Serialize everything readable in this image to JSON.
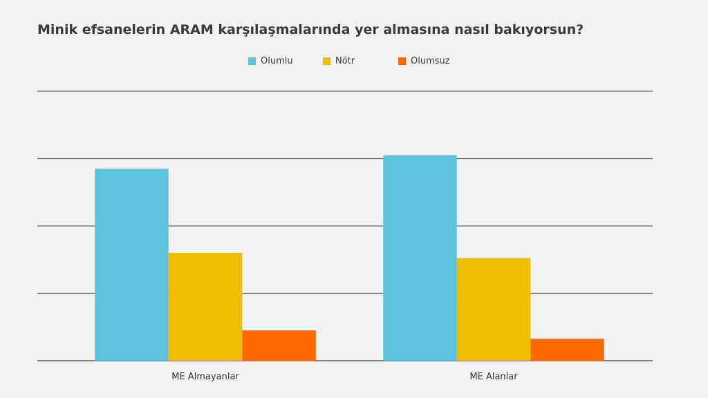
{
  "chart_data": {
    "type": "bar",
    "title": "Minik efsanelerin ARAM karşılaşmalarında yer almasına nasıl bakıyorsun?",
    "categories": [
      "ME Almayanlar",
      "ME Alanlar"
    ],
    "series": [
      {
        "name": "Olumlu",
        "color": "#5bc4dc",
        "values": [
          57,
          61
        ]
      },
      {
        "name": "Nötr",
        "color": "#f0be00",
        "values": [
          32,
          30.5
        ]
      },
      {
        "name": "Olumsuz",
        "color": "#ff6a00",
        "values": [
          9,
          6.5
        ]
      }
    ],
    "ylim": [
      0,
      80
    ],
    "grid": true,
    "legend_position": "top-center",
    "xlabel": "",
    "ylabel": ""
  }
}
